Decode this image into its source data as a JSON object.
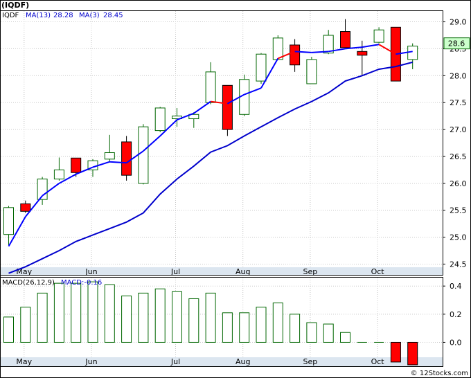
{
  "title": "(IQDF)",
  "credit": "© 12Stocks.com",
  "colors": {
    "up_fill": "#ffffff",
    "up_stroke": "#006600",
    "down_fill": "#ff0000",
    "ma13": "#0000cc",
    "ma3": "#0000ff",
    "ma3_down": "#ff0000",
    "axis_band": "#dce6f0",
    "macd_neg": "#ff0000",
    "macd_pos_stroke": "#006600",
    "last_price_box": "#ccffcc"
  },
  "chart_data": [
    {
      "type": "candlestick",
      "legend": {
        "symbol": "IQDF",
        "ma13_label": "MA(13)",
        "ma13_value": "28.28",
        "ma3_label": "MA(3)",
        "ma3_value": "28.45"
      },
      "last_price_label": "28.6",
      "y_ticks": [
        "24.5",
        "25.0",
        "25.5",
        "26.0",
        "26.5",
        "27.0",
        "27.5",
        "28.0",
        "28.5",
        "29.0"
      ],
      "ylim": [
        24.3,
        29.2
      ],
      "x_tick_labels": [
        "May",
        "Jun",
        "Jul",
        "Aug",
        "Sep",
        "Oct"
      ],
      "x_tick_bars": [
        1,
        5,
        10,
        14,
        18,
        22
      ],
      "bars": [
        {
          "o": 25.05,
          "h": 25.58,
          "l": 24.85,
          "c": 25.55
        },
        {
          "o": 25.62,
          "h": 25.68,
          "l": 25.45,
          "c": 25.48
        },
        {
          "o": 25.7,
          "h": 26.12,
          "l": 25.6,
          "c": 26.08
        },
        {
          "o": 26.08,
          "h": 26.48,
          "l": 26.05,
          "c": 26.25
        },
        {
          "o": 26.47,
          "h": 26.47,
          "l": 26.12,
          "c": 26.2
        },
        {
          "o": 26.25,
          "h": 26.45,
          "l": 26.12,
          "c": 26.42
        },
        {
          "o": 26.45,
          "h": 26.9,
          "l": 26.4,
          "c": 26.57
        },
        {
          "o": 26.77,
          "h": 26.88,
          "l": 26.05,
          "c": 26.15
        },
        {
          "o": 26.0,
          "h": 27.1,
          "l": 25.98,
          "c": 27.05
        },
        {
          "o": 26.98,
          "h": 27.42,
          "l": 26.95,
          "c": 27.4
        },
        {
          "o": 27.2,
          "h": 27.4,
          "l": 27.05,
          "c": 27.25
        },
        {
          "o": 27.2,
          "h": 27.32,
          "l": 27.03,
          "c": 27.28
        },
        {
          "o": 27.5,
          "h": 28.25,
          "l": 27.47,
          "c": 28.07
        },
        {
          "o": 27.82,
          "h": 27.82,
          "l": 26.88,
          "c": 27.0
        },
        {
          "o": 27.28,
          "h": 28.02,
          "l": 27.25,
          "c": 27.93
        },
        {
          "o": 27.9,
          "h": 28.42,
          "l": 27.85,
          "c": 28.4
        },
        {
          "o": 28.3,
          "h": 28.75,
          "l": 28.3,
          "c": 28.7
        },
        {
          "o": 28.57,
          "h": 28.68,
          "l": 28.07,
          "c": 28.2
        },
        {
          "o": 27.85,
          "h": 28.35,
          "l": 27.85,
          "c": 28.3
        },
        {
          "o": 28.42,
          "h": 28.85,
          "l": 28.4,
          "c": 28.75
        },
        {
          "o": 28.82,
          "h": 29.05,
          "l": 28.52,
          "c": 28.52
        },
        {
          "o": 28.45,
          "h": 28.65,
          "l": 28.0,
          "c": 28.38
        },
        {
          "o": 28.62,
          "h": 28.9,
          "l": 28.6,
          "c": 28.85
        },
        {
          "o": 28.9,
          "h": 28.9,
          "l": 27.9,
          "c": 27.9
        },
        {
          "o": 28.3,
          "h": 28.6,
          "l": 28.12,
          "c": 28.55
        }
      ],
      "ma13": [
        24.33,
        24.45,
        24.6,
        24.75,
        24.92,
        25.04,
        25.16,
        25.28,
        25.45,
        25.8,
        26.08,
        26.32,
        26.58,
        26.7,
        26.88,
        27.05,
        27.22,
        27.38,
        27.52,
        27.68,
        27.9,
        28.0,
        28.12,
        28.17,
        28.25
      ],
      "ma3": [
        24.83,
        25.38,
        25.77,
        26.0,
        26.17,
        26.3,
        26.4,
        26.38,
        26.6,
        26.88,
        27.18,
        27.3,
        27.52,
        27.48,
        27.65,
        27.77,
        28.32,
        28.45,
        28.43,
        28.45,
        28.5,
        28.53,
        28.58,
        28.4,
        28.45
      ],
      "ma3_down_segments": [
        12,
        16,
        22
      ]
    },
    {
      "type": "bar",
      "legend": {
        "label": "MACD(26,12,9)",
        "value_label": "MACD:-0.16"
      },
      "y_ticks": [
        "0.4",
        "0.2",
        "0.0"
      ],
      "y_tick_values": [
        0.4,
        0.2,
        0.0
      ],
      "ylim": [
        -0.17,
        0.46
      ],
      "x_tick_labels": [
        "May",
        "Jun",
        "Jul",
        "Aug",
        "Sep",
        "Oct"
      ],
      "values": [
        0.18,
        0.25,
        0.35,
        0.42,
        0.42,
        0.43,
        0.41,
        0.33,
        0.35,
        0.38,
        0.36,
        0.31,
        0.35,
        0.21,
        0.21,
        0.25,
        0.28,
        0.2,
        0.14,
        0.13,
        0.07,
        0.0,
        0.0,
        -0.14,
        -0.16
      ]
    }
  ]
}
